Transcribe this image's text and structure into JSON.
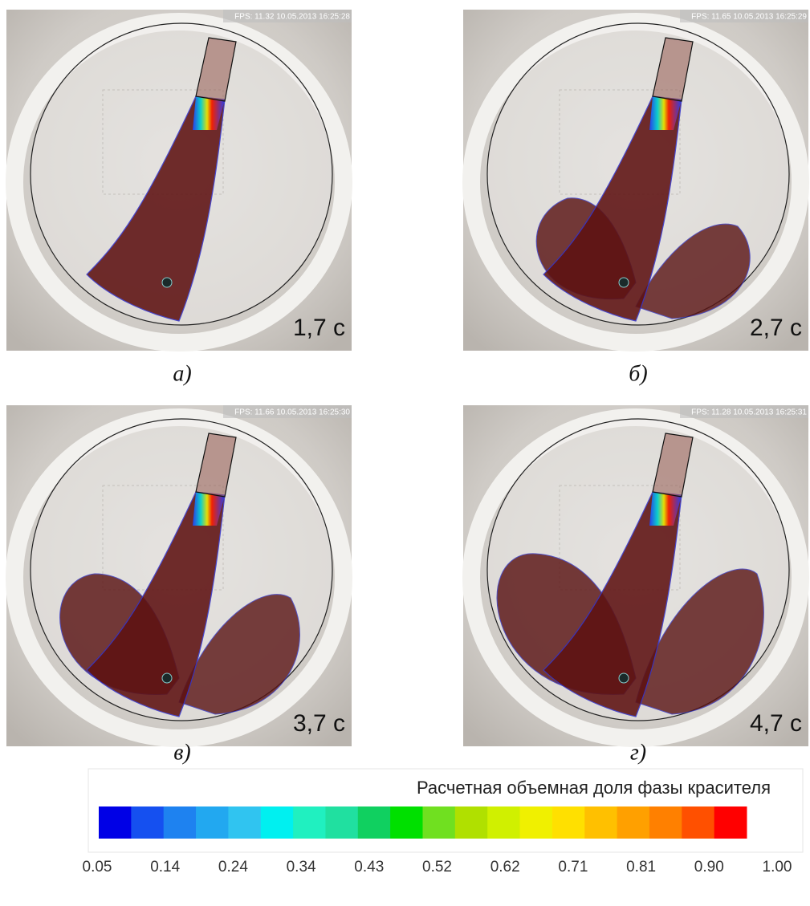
{
  "panels": [
    {
      "overlay": "FPS: 11.32 10.05.2013 16:25:28",
      "time": "1,7 с",
      "caption": "а)"
    },
    {
      "overlay": "FPS: 11.65 10.05.2013 16:25:29",
      "time": "2,7 с",
      "caption": "б)"
    },
    {
      "overlay": "FPS: 11.66 10.05.2013 16:25:30",
      "time": "3,7 с",
      "caption": "в)"
    },
    {
      "overlay": "FPS: 11.28 10.05.2013 16:25:31",
      "time": "4,7 с",
      "caption": "г)"
    }
  ],
  "legend": {
    "title": "Расчетная объемная доля фазы красителя",
    "colors": [
      "#0000e6",
      "#1550f0",
      "#1e82f0",
      "#22a8f0",
      "#30c4f0",
      "#00f0f0",
      "#20f0c0",
      "#20e0a0",
      "#10d060",
      "#00e000",
      "#70e020",
      "#b0e000",
      "#d0f000",
      "#f0f000",
      "#ffe000",
      "#ffc000",
      "#ffa000",
      "#ff8000",
      "#ff5000",
      "#ff0000"
    ],
    "ticks": [
      "0.05",
      "0.14",
      "0.24",
      "0.34",
      "0.43",
      "0.52",
      "0.62",
      "0.71",
      "0.81",
      "0.90",
      "1.00"
    ]
  }
}
